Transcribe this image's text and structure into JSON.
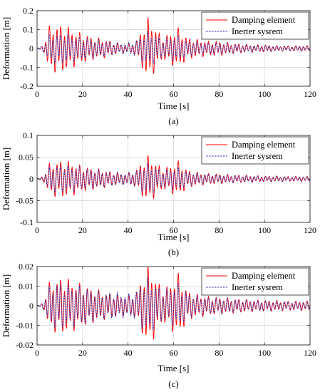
{
  "chart_data": [
    {
      "type": "line",
      "caption": "(a)",
      "xlabel": "Time [s]",
      "ylabel": "Deformation [m]",
      "xlim": [
        0,
        120
      ],
      "ylim": [
        -0.2,
        0.2
      ],
      "xticks": [
        "0",
        "20",
        "40",
        "60",
        "80",
        "100",
        "120"
      ],
      "yticks": [
        "0.2",
        "0.1",
        "0",
        "-0.1",
        "-0.2"
      ],
      "grid": true,
      "legend_position": "top-right",
      "series": [
        {
          "name": "Damping element",
          "color": "#ff0000",
          "style": "solid",
          "x": [
            0,
            3,
            5,
            8,
            12,
            16,
            20,
            25,
            30,
            35,
            38,
            43,
            46,
            48,
            50,
            55,
            58,
            62,
            66,
            70,
            75,
            80,
            85,
            90,
            95,
            100,
            105,
            110,
            115,
            120
          ],
          "envelope": [
            0,
            0.02,
            0.12,
            0.13,
            0.13,
            0.1,
            0.08,
            0.06,
            0.05,
            0.03,
            0.02,
            0.03,
            0.1,
            0.17,
            0.16,
            0.06,
            0.08,
            0.11,
            0.06,
            0.05,
            0.04,
            0.04,
            0.03,
            0.025,
            0.02,
            0.02,
            0.015,
            0.015,
            0.015,
            0.015
          ]
        },
        {
          "name": "Inerter sysrem",
          "color": "#3232b4",
          "style": "dashed",
          "x": [
            0,
            3,
            5,
            8,
            12,
            16,
            20,
            25,
            30,
            35,
            38,
            43,
            46,
            48,
            50,
            55,
            58,
            62,
            66,
            70,
            75,
            80,
            85,
            90,
            95,
            100,
            105,
            110,
            115,
            120
          ],
          "envelope": [
            0,
            0.02,
            0.07,
            0.08,
            0.08,
            0.07,
            0.06,
            0.05,
            0.04,
            0.035,
            0.03,
            0.04,
            0.07,
            0.09,
            0.09,
            0.05,
            0.06,
            0.07,
            0.04,
            0.035,
            0.03,
            0.03,
            0.025,
            0.02,
            0.018,
            0.016,
            0.014,
            0.013,
            0.012,
            0.012
          ]
        }
      ]
    },
    {
      "type": "line",
      "caption": "(b)",
      "xlabel": "Time [s]",
      "ylabel": "Deformation [m]",
      "xlim": [
        0,
        120
      ],
      "ylim": [
        -0.1,
        0.1
      ],
      "xticks": [
        "0",
        "20",
        "40",
        "60",
        "80",
        "100",
        "120"
      ],
      "yticks": [
        "0.1",
        "0.05",
        "0",
        "-0.05",
        "-0.1"
      ],
      "grid": true,
      "legend_position": "top-right",
      "series": [
        {
          "name": "Damping element",
          "color": "#ff0000",
          "style": "solid",
          "x": [
            0,
            3,
            5,
            8,
            12,
            16,
            20,
            25,
            30,
            35,
            38,
            43,
            46,
            48,
            50,
            55,
            58,
            62,
            66,
            70,
            75,
            80,
            85,
            90,
            95,
            100,
            105,
            110,
            115,
            120
          ],
          "envelope": [
            0,
            0.008,
            0.035,
            0.042,
            0.045,
            0.038,
            0.03,
            0.025,
            0.02,
            0.015,
            0.012,
            0.018,
            0.04,
            0.056,
            0.052,
            0.025,
            0.03,
            0.042,
            0.022,
            0.016,
            0.013,
            0.012,
            0.01,
            0.009,
            0.008,
            0.007,
            0.007,
            0.006,
            0.006,
            0.006
          ]
        },
        {
          "name": "Inerter sysrem",
          "color": "#3232b4",
          "style": "dashed",
          "x": [
            0,
            3,
            5,
            8,
            12,
            16,
            20,
            25,
            30,
            35,
            38,
            43,
            46,
            48,
            50,
            55,
            58,
            62,
            66,
            70,
            75,
            80,
            85,
            90,
            95,
            100,
            105,
            110,
            115,
            120
          ],
          "envelope": [
            0,
            0.006,
            0.028,
            0.032,
            0.033,
            0.03,
            0.025,
            0.022,
            0.018,
            0.016,
            0.014,
            0.017,
            0.03,
            0.037,
            0.035,
            0.02,
            0.022,
            0.028,
            0.017,
            0.013,
            0.011,
            0.01,
            0.009,
            0.008,
            0.007,
            0.006,
            0.006,
            0.005,
            0.005,
            0.005
          ]
        }
      ]
    },
    {
      "type": "line",
      "caption": "(c)",
      "xlabel": "Time [s]",
      "ylabel": "Deformation [m]",
      "xlim": [
        0,
        120
      ],
      "ylim": [
        -0.02,
        0.02
      ],
      "xticks": [
        "0",
        "20",
        "40",
        "60",
        "80",
        "100",
        "120"
      ],
      "yticks": [
        "0.02",
        "0.01",
        "0",
        "-0.01",
        "-0.02"
      ],
      "grid": true,
      "legend_position": "top-right",
      "series": [
        {
          "name": "Damping element",
          "color": "#ff0000",
          "style": "solid",
          "x": [
            0,
            3,
            5,
            8,
            12,
            16,
            20,
            25,
            30,
            35,
            38,
            43,
            46,
            48,
            50,
            55,
            58,
            62,
            66,
            70,
            75,
            80,
            85,
            90,
            95,
            100,
            105,
            110,
            115,
            120
          ],
          "envelope": [
            0,
            0.002,
            0.012,
            0.014,
            0.015,
            0.013,
            0.011,
            0.009,
            0.007,
            0.006,
            0.005,
            0.006,
            0.014,
            0.021,
            0.02,
            0.009,
            0.011,
            0.017,
            0.008,
            0.006,
            0.005,
            0.0045,
            0.004,
            0.0035,
            0.003,
            0.003,
            0.0028,
            0.0025,
            0.0025,
            0.0025
          ]
        },
        {
          "name": "Inerter sysrem",
          "color": "#3232b4",
          "style": "dashed",
          "x": [
            0,
            3,
            5,
            8,
            12,
            16,
            20,
            25,
            30,
            35,
            38,
            43,
            46,
            48,
            50,
            55,
            58,
            62,
            66,
            70,
            75,
            80,
            85,
            90,
            95,
            100,
            105,
            110,
            115,
            120
          ],
          "envelope": [
            0,
            0.002,
            0.01,
            0.012,
            0.012,
            0.011,
            0.01,
            0.008,
            0.007,
            0.007,
            0.006,
            0.007,
            0.012,
            0.015,
            0.014,
            0.008,
            0.009,
            0.012,
            0.007,
            0.005,
            0.0045,
            0.004,
            0.0035,
            0.003,
            0.0028,
            0.0026,
            0.0024,
            0.0022,
            0.0022,
            0.0022
          ]
        }
      ]
    }
  ]
}
